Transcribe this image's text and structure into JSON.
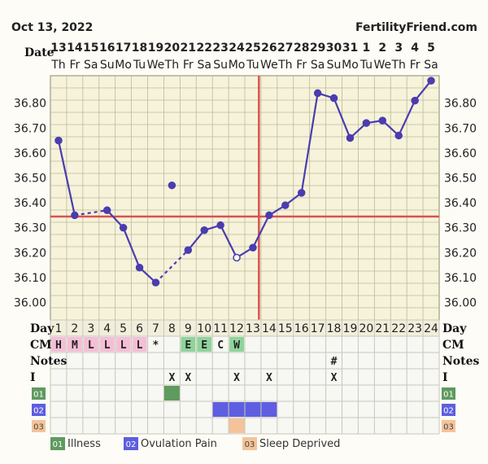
{
  "header": {
    "date": "Oct 13, 2022",
    "brand": "FertilityFriend.com"
  },
  "colors": {
    "background": "#fdfcf6",
    "plot_bg": "#f6f3da",
    "grid": "#bdb99b",
    "line": "#4b3cb0",
    "coverline": "#d9534f",
    "cm_pink": "#f4bfd6",
    "cm_green": "#8fd49a",
    "illness": "#5f9a5f",
    "ovulation_pain": "#5e5ee0",
    "sleep_deprived": "#f5c39a"
  },
  "chart_data": {
    "type": "line",
    "row_labels": {
      "date": "Date",
      "day": "Day",
      "cm": "CM",
      "notes": "Notes",
      "intercourse": "I"
    },
    "dates": [
      "13",
      "14",
      "15",
      "16",
      "17",
      "18",
      "19",
      "20",
      "21",
      "22",
      "23",
      "24",
      "25",
      "26",
      "27",
      "28",
      "29",
      "30",
      "31",
      "1",
      "2",
      "3",
      "4",
      "5"
    ],
    "weekdays": [
      "Th",
      "Fr",
      "Sa",
      "Su",
      "Mo",
      "Tu",
      "We",
      "Th",
      "Fr",
      "Sa",
      "Su",
      "Mo",
      "Tu",
      "We",
      "Th",
      "Fr",
      "Sa",
      "Su",
      "Mo",
      "Tu",
      "We",
      "Th",
      "Fr",
      "Sa"
    ],
    "cycle_days": [
      "1",
      "2",
      "3",
      "4",
      "5",
      "6",
      "7",
      "8",
      "9",
      "10",
      "11",
      "12",
      "13",
      "14",
      "15",
      "16",
      "17",
      "18",
      "19",
      "20",
      "21",
      "22",
      "23",
      "24"
    ],
    "y_ticks": [
      "36.80",
      "36.70",
      "36.60",
      "36.50",
      "36.40",
      "36.30",
      "36.20",
      "36.10",
      "36.00"
    ],
    "ylim": [
      35.93,
      36.91
    ],
    "temperatures": [
      36.65,
      36.35,
      null,
      36.37,
      36.3,
      36.14,
      36.08,
      36.47,
      36.21,
      36.29,
      36.31,
      36.18,
      36.22,
      36.35,
      36.39,
      36.44,
      36.84,
      36.82,
      36.66,
      36.72,
      36.73,
      36.67,
      36.81,
      36.89
    ],
    "discarded_days": [
      8
    ],
    "open_marker_days": [
      12
    ],
    "dashed_bridges": [
      [
        2,
        4
      ],
      [
        7,
        9
      ]
    ],
    "solid_breaks": [
      [
        7,
        8
      ],
      [
        8,
        9
      ]
    ],
    "coverline_temp": 36.345,
    "ovulation_day": 13,
    "cm": [
      "H",
      "M",
      "L",
      "L",
      "L",
      "L",
      "*",
      "",
      "E",
      "E",
      "C",
      "W",
      "",
      "",
      "",
      "",
      "",
      "",
      "",
      "",
      "",
      "",
      "",
      ""
    ],
    "cm_colors": [
      "pink",
      "pink",
      "pink",
      "pink",
      "pink",
      "pink",
      "none",
      "none",
      "green",
      "green",
      "none",
      "green",
      "none",
      "none",
      "none",
      "none",
      "none",
      "none",
      "none",
      "none",
      "none",
      "none",
      "none",
      "none"
    ],
    "notes": [
      "",
      "",
      "",
      "",
      "",
      "",
      "",
      "",
      "",
      "",
      "",
      "",
      "",
      "",
      "",
      "",
      "",
      "#",
      "",
      "",
      "",
      "",
      "",
      ""
    ],
    "intercourse": [
      "",
      "",
      "",
      "",
      "",
      "",
      "",
      "X",
      "X",
      "",
      "",
      "X",
      "",
      "X",
      "",
      "",
      "",
      "X",
      "",
      "",
      "",
      "",
      "",
      ""
    ],
    "custom_rows": [
      {
        "code": "01",
        "label": "Illness",
        "color": "#5f9a5f",
        "days": [
          8
        ]
      },
      {
        "code": "02",
        "label": "Ovulation Pain",
        "color": "#5e5ee0",
        "days": [
          11,
          12,
          13,
          14
        ]
      },
      {
        "code": "03",
        "label": "Sleep Deprived",
        "color": "#f5c39a",
        "days": [
          12
        ]
      }
    ]
  }
}
